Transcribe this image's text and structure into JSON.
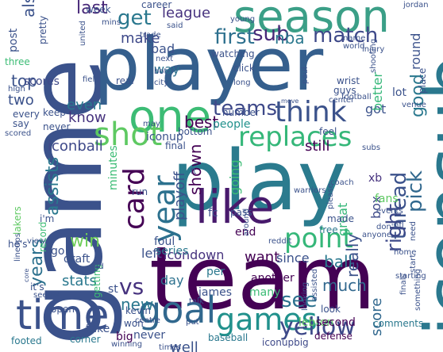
{
  "cloud": {
    "words": [
      {
        "text": "game",
        "color": "#3b528b"
      },
      {
        "text": "player",
        "color": "#355f8d"
      },
      {
        "text": "season",
        "color": "#3b9f87"
      },
      {
        "text": "play",
        "color": "#2b7b8e"
      },
      {
        "text": "team",
        "color": "#440154"
      },
      {
        "text": "iconsub",
        "color": "#2a788e"
      },
      {
        "text": "one",
        "color": "#3cbc75"
      },
      {
        "text": "time",
        "color": "#3b528b"
      },
      {
        "text": "like",
        "color": "#481a6c"
      },
      {
        "text": "goal",
        "color": "#31688e"
      },
      {
        "text": "games",
        "color": "#21918c"
      },
      {
        "text": "shot",
        "color": "#5ec962"
      },
      {
        "text": "year",
        "color": "#2c718e"
      },
      {
        "text": "card",
        "color": "#440154"
      },
      {
        "text": "replaces",
        "color": "#35b779"
      },
      {
        "text": "point",
        "color": "#35b779"
      },
      {
        "text": "think",
        "color": "#3b528b"
      },
      {
        "text": "teams",
        "color": "#3e4989"
      },
      {
        "text": "get",
        "color": "#2a788e"
      },
      {
        "text": "sub",
        "color": "#482878"
      },
      {
        "text": "match",
        "color": "#3e4989"
      },
      {
        "text": "first",
        "color": "#2d708e"
      },
      {
        "text": "nba",
        "color": "#2a788e"
      },
      {
        "text": "thread",
        "color": "#3b528b"
      },
      {
        "text": "right",
        "color": "#3e4989"
      },
      {
        "text": "pick",
        "color": "#31688e"
      },
      {
        "text": "yellow",
        "color": "#3e4989"
      },
      {
        "text": "see",
        "color": "#2c718e"
      },
      {
        "text": "vs",
        "color": "#46327e"
      },
      {
        "text": "win",
        "color": "#6ece58"
      },
      {
        "text": "new",
        "color": "#2a788e"
      },
      {
        "text": "shown",
        "color": "#440154"
      },
      {
        "text": "playoff",
        "color": "#3b528b"
      },
      {
        "text": "years",
        "color": "#2c718e"
      },
      {
        "text": "assists",
        "color": "#2a788e"
      },
      {
        "text": "best",
        "color": "#440154"
      },
      {
        "text": "good",
        "color": "#2a788e"
      },
      {
        "text": "iconball",
        "color": "#3e4989"
      },
      {
        "text": "last",
        "color": "#482878"
      },
      {
        "text": "league",
        "color": "#46327e"
      },
      {
        "text": "also",
        "color": "#3b528b"
      },
      {
        "text": "top",
        "color": "#3b528b"
      },
      {
        "text": "make",
        "color": "#3e4989"
      },
      {
        "text": "bad",
        "color": "#3b528b"
      },
      {
        "text": "way",
        "color": "#2c718e"
      },
      {
        "text": "even",
        "color": "#2a788e"
      },
      {
        "text": "two",
        "color": "#3b528b"
      },
      {
        "text": "know",
        "color": "#46327e"
      },
      {
        "text": "still",
        "color": "#440154"
      },
      {
        "text": "box",
        "color": "#3e4989"
      },
      {
        "text": "much",
        "color": "#31688e"
      },
      {
        "text": "really",
        "color": "#3b528b"
      },
      {
        "text": "ball",
        "color": "#2a788e"
      },
      {
        "text": "want",
        "color": "#440154"
      },
      {
        "text": "left",
        "color": "#3b528b"
      },
      {
        "text": "icondown",
        "color": "#46327e"
      },
      {
        "text": "day",
        "color": "#2c718e"
      },
      {
        "text": "stats",
        "color": "#2a788e"
      },
      {
        "text": "well",
        "color": "#3b528b"
      },
      {
        "text": "score",
        "color": "#31688e"
      },
      {
        "text": "going",
        "color": "#3cbc75"
      },
      {
        "text": "since",
        "color": "#3b528b"
      },
      {
        "text": "great",
        "color": "#35b779"
      },
      {
        "text": "people",
        "color": "#21918c"
      },
      {
        "text": "got",
        "color": "#3b528b"
      },
      {
        "text": "better",
        "color": "#35b779"
      },
      {
        "text": "round",
        "color": "#3b528b"
      },
      {
        "text": "post",
        "color": "#3b528b"
      },
      {
        "text": "scores",
        "color": "#3e4989"
      },
      {
        "text": "iconup",
        "color": "#3b528b"
      },
      {
        "text": "minutes",
        "color": "#3cbc75"
      },
      {
        "text": "draft",
        "color": "#3b528b"
      },
      {
        "text": "xb",
        "color": "#46327e"
      },
      {
        "text": "fans",
        "color": "#5ec962"
      },
      {
        "text": "lot",
        "color": "#3b528b"
      },
      {
        "text": "end",
        "color": "#440154"
      },
      {
        "text": "fc",
        "color": "#3b528b"
      },
      {
        "text": "foul",
        "color": "#3b528b"
      },
      {
        "text": "series",
        "color": "#2a788e"
      },
      {
        "text": "james",
        "color": "#3b528b"
      },
      {
        "text": "per",
        "color": "#2a788e"
      },
      {
        "text": "another",
        "color": "#440154"
      },
      {
        "text": "many",
        "color": "#3cbc75"
      },
      {
        "text": "lebron",
        "color": "#5ec962"
      },
      {
        "text": "second",
        "color": "#440154"
      },
      {
        "text": "comments",
        "color": "#2a788e"
      },
      {
        "text": "defense",
        "color": "#440154"
      },
      {
        "text": "iconupbig",
        "color": "#3e4989"
      },
      {
        "text": "baseball",
        "color": "#2a788e"
      },
      {
        "text": "never",
        "color": "#3b528b"
      },
      {
        "text": "take",
        "color": "#3b528b"
      },
      {
        "text": "corner",
        "color": "#2a788e"
      },
      {
        "text": "footed",
        "color": "#2a788e"
      },
      {
        "text": "winning",
        "color": "#3b528b"
      },
      {
        "text": "big",
        "color": "#440154"
      },
      {
        "text": "won",
        "color": "#3b528b"
      },
      {
        "text": "kevin",
        "color": "#3b528b"
      },
      {
        "text": "st",
        "color": "#3b528b"
      },
      {
        "text": "open",
        "color": "#3b528b"
      },
      {
        "text": "getting",
        "color": "#3cbc75"
      },
      {
        "text": "it's",
        "color": "#3b528b"
      },
      {
        "text": "he's",
        "color": "#3b528b"
      },
      {
        "text": "i'm",
        "color": "#3b528b"
      },
      {
        "text": "lakers",
        "color": "#5ec962"
      },
      {
        "text": "record",
        "color": "#3cbc75"
      },
      {
        "text": "go",
        "color": "#3b528b"
      },
      {
        "text": "free",
        "color": "#2a788e"
      },
      {
        "text": "made",
        "color": "#3b528b"
      },
      {
        "text": "pass",
        "color": "#3b528b"
      },
      {
        "text": "run",
        "color": "#3b528b"
      },
      {
        "text": "final",
        "color": "#3b528b"
      },
      {
        "text": "bottom",
        "color": "#3b528b"
      },
      {
        "text": "number",
        "color": "#3b528b"
      },
      {
        "text": "warriors",
        "color": "#3b528b"
      },
      {
        "text": "feel",
        "color": "#3b528b"
      },
      {
        "text": "keep",
        "color": "#3b528b"
      },
      {
        "text": "never",
        "color": "#3b528b"
      },
      {
        "text": "venue",
        "color": "#3b528b"
      },
      {
        "text": "football",
        "color": "#3b528b"
      },
      {
        "text": "every",
        "color": "#3b528b"
      },
      {
        "text": "say",
        "color": "#3b528b"
      },
      {
        "text": "three",
        "color": "#3cbc75"
      },
      {
        "text": "pretty",
        "color": "#3b528b"
      },
      {
        "text": "week",
        "color": "#3b528b"
      },
      {
        "text": "career",
        "color": "#3b528b"
      },
      {
        "text": "trade",
        "color": "#3b528b"
      },
      {
        "text": "said",
        "color": "#3b528b"
      },
      {
        "text": "next",
        "color": "#3b528b"
      },
      {
        "text": "city",
        "color": "#3b528b"
      },
      {
        "text": "real",
        "color": "#3b528b"
      },
      {
        "text": "watching",
        "color": "#3b528b"
      },
      {
        "text": "click",
        "color": "#3b528b"
      },
      {
        "text": "guys",
        "color": "#3b528b"
      },
      {
        "text": "wrist",
        "color": "#3b528b"
      },
      {
        "text": "shooting",
        "color": "#3b528b"
      },
      {
        "text": "place",
        "color": "#3b528b"
      },
      {
        "text": "injury",
        "color": "#3b528b"
      },
      {
        "text": "name",
        "color": "#3b528b"
      },
      {
        "text": "jordan",
        "color": "#3b528b"
      },
      {
        "text": "field",
        "color": "#3b528b"
      },
      {
        "text": "may",
        "color": "#3b528b"
      },
      {
        "text": "home",
        "color": "#3b528b"
      },
      {
        "text": "nfl",
        "color": "#3b528b"
      },
      {
        "text": "anyone",
        "color": "#3b528b"
      },
      {
        "text": "don't",
        "color": "#3b528b"
      },
      {
        "text": "need",
        "color": "#3b528b"
      },
      {
        "text": "events",
        "color": "#3b528b"
      },
      {
        "text": "coach",
        "color": "#3b528b"
      },
      {
        "text": "starting",
        "color": "#3b528b"
      },
      {
        "text": "talk",
        "color": "#3b528b"
      },
      {
        "text": "centre",
        "color": "#3b528b"
      },
      {
        "text": "look",
        "color": "#3b528b"
      },
      {
        "text": "assisted",
        "color": "#3b528b"
      },
      {
        "text": "seems",
        "color": "#3b528b"
      },
      {
        "text": "lineups",
        "color": "#3b528b"
      },
      {
        "text": "view",
        "color": "#3b528b"
      },
      {
        "text": "put",
        "color": "#3b528b"
      },
      {
        "text": "times",
        "color": "#3b528b"
      },
      {
        "text": "please",
        "color": "#3b528b"
      },
      {
        "text": "around",
        "color": "#3b528b"
      },
      {
        "text": "reddit",
        "color": "#3b528b"
      },
      {
        "text": "ft",
        "color": "#3b528b"
      },
      {
        "text": "high",
        "color": "#3b528b"
      },
      {
        "text": "united",
        "color": "#3b528b"
      },
      {
        "text": "paul",
        "color": "#3b528b"
      },
      {
        "text": "subs",
        "color": "#3b528b"
      },
      {
        "text": "nd",
        "color": "#3b528b"
      },
      {
        "text": "scored",
        "color": "#3b528b"
      },
      {
        "text": "bot",
        "color": "#3b528b"
      },
      {
        "text": "mins",
        "color": "#3b528b"
      },
      {
        "text": "young",
        "color": "#3b528b"
      },
      {
        "text": "world",
        "color": "#3b528b"
      },
      {
        "text": "center",
        "color": "#3b528b"
      },
      {
        "text": "long",
        "color": "#3b528b"
      },
      {
        "text": "move",
        "color": "#3b528b"
      },
      {
        "text": "start",
        "color": "#3b528b"
      },
      {
        "text": "something",
        "color": "#3b528b"
      },
      {
        "text": "finals",
        "color": "#3b528b"
      },
      {
        "text": "core",
        "color": "#3b528b"
      },
      {
        "text": "looking",
        "color": "#3b528b"
      }
    ]
  }
}
